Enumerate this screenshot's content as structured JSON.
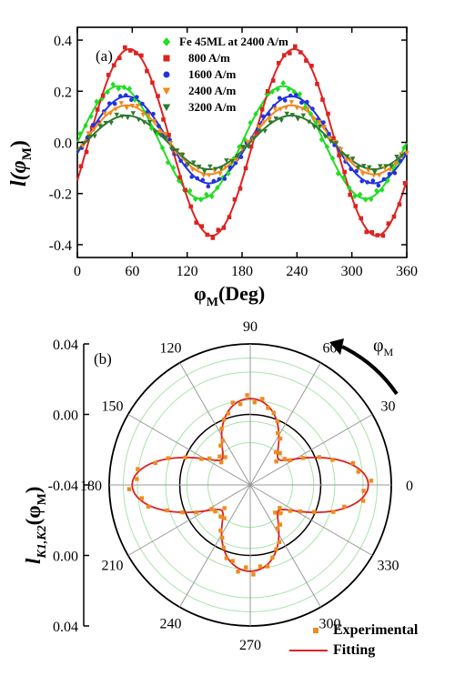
{
  "chart_data": [
    {
      "type": "line",
      "panel": "(a)",
      "xlabel_main": "φ",
      "xlabel_sub": "M",
      "xlabel_unit": "(Deg)",
      "ylabel_main": "l(φ",
      "ylabel_sub": "M",
      "ylabel_close": ")",
      "xlim": [
        0,
        360
      ],
      "ylim": [
        -0.45,
        0.45
      ],
      "xticks": [
        0,
        60,
        120,
        180,
        240,
        300,
        360
      ],
      "yticks": [
        -0.4,
        -0.2,
        0.0,
        0.2,
        0.4
      ],
      "series": [
        {
          "name": "Fe 45ML at 2400 A/m",
          "marker": "diamond",
          "color": "#22dd22",
          "amplitude": 0.22,
          "phase": 45,
          "y_offset": 0.0
        },
        {
          "name": "800 A/m",
          "marker": "square",
          "color": "#dd2222",
          "amplitude": 0.365,
          "phase": 57,
          "y_offset": 0.0
        },
        {
          "name": "1600 A/m",
          "marker": "circle",
          "color": "#2233dd",
          "amplitude": 0.17,
          "phase": 54,
          "y_offset": 0.01
        },
        {
          "name": "2400 A/m",
          "marker": "triangle-down",
          "color": "#f08a1e",
          "amplitude": 0.135,
          "phase": 54,
          "y_offset": 0.01
        },
        {
          "name": "3200 A/m",
          "marker": "triangle-down",
          "color": "#2e7a2e",
          "amplitude": 0.105,
          "phase": 54,
          "y_offset": 0.0
        }
      ]
    },
    {
      "type": "polar",
      "panel": "(b)",
      "ylabel_main": "l",
      "ylabel_sub": "K1,K2",
      "ylabel_tail": "(φ",
      "ylabel_sub2": "M",
      "ylabel_close": ")",
      "rticks": [
        "0.04",
        "0.00",
        "-0.04",
        "0.00",
        "0.04"
      ],
      "angle_ticks": [
        0,
        30,
        60,
        90,
        120,
        150,
        180,
        210,
        240,
        270,
        300,
        330
      ],
      "angle_tick_labels": [
        "0",
        "30",
        "60",
        "90",
        "120",
        "150",
        "180",
        "210",
        "240",
        "270",
        "300",
        "330"
      ],
      "r_range": [
        -0.04,
        0.04
      ],
      "zero_circle_r": 0.0,
      "curve": {
        "base": 0.0,
        "a4": 0.018,
        "a2": 0.005,
        "a6": 0.004
      },
      "arrow_label_main": "φ",
      "arrow_label_sub": "M",
      "legend": [
        {
          "name": "Experimental",
          "marker": "square",
          "color": "#f08a1e"
        },
        {
          "name": "Fitting",
          "marker": "line",
          "color": "#dd2222"
        }
      ]
    }
  ]
}
